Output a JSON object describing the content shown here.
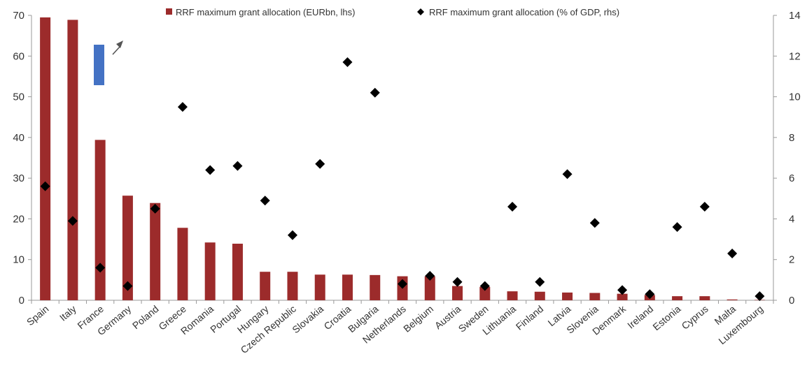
{
  "colors": {
    "bars": "#9c2b2b",
    "diamonds": "#000000",
    "marker": "#4472c4",
    "arrow": "#555555",
    "axis": "#999999"
  },
  "chart_data": {
    "type": "bar",
    "categories": [
      "Spain",
      "Italy",
      "France",
      "Germany",
      "Poland",
      "Greece",
      "Romania",
      "Portugal",
      "Hungary",
      "Czech Republic",
      "Slovakia",
      "Croatia",
      "Bulgaria",
      "Netherlands",
      "Belgium",
      "Austria",
      "Sweden",
      "Lithuania",
      "Finland",
      "Latvia",
      "Slovenia",
      "Denmark",
      "Ireland",
      "Estonia",
      "Cyprus",
      "Malta",
      "Luxembourg"
    ],
    "series": [
      {
        "name": "RRF maximum grant allocation (EURbn, lhs)",
        "type": "bar",
        "axis": "left",
        "values": [
          69.5,
          68.9,
          39.4,
          25.7,
          23.9,
          17.8,
          14.2,
          13.9,
          7.0,
          7.0,
          6.3,
          6.3,
          6.2,
          5.9,
          5.9,
          3.5,
          3.3,
          2.2,
          2.1,
          1.9,
          1.8,
          1.6,
          1.3,
          1.0,
          1.0,
          0.2,
          0.1
        ]
      },
      {
        "name": "RRF maximum grant allocation (% of GDP, rhs)",
        "type": "scatter",
        "axis": "right",
        "values": [
          5.6,
          3.9,
          1.6,
          0.7,
          4.5,
          9.5,
          6.4,
          6.6,
          4.9,
          3.2,
          6.7,
          11.7,
          10.2,
          0.8,
          1.2,
          0.9,
          0.7,
          4.6,
          0.9,
          6.2,
          3.8,
          0.5,
          0.3,
          3.6,
          4.6,
          2.3,
          0.2
        ]
      }
    ],
    "ylim_left": [
      0,
      70
    ],
    "yticks_left": [
      0,
      10,
      20,
      30,
      40,
      50,
      60,
      70
    ],
    "ylim_right": [
      0,
      14
    ],
    "yticks_right": [
      0,
      2,
      4,
      6,
      8,
      10,
      12,
      14
    ],
    "legend_position": "top-center",
    "grid": false
  }
}
